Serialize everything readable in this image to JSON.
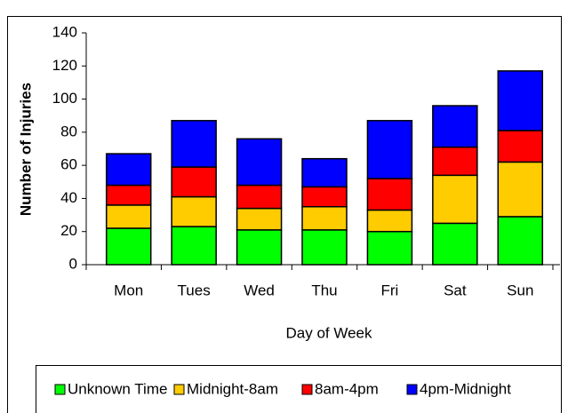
{
  "chart_data": {
    "type": "stacked_bar",
    "y_label": "Number of Injuries",
    "x_label": "Day of Week",
    "categories": [
      "Mon",
      "Tues",
      "Wed",
      "Thu",
      "Fri",
      "Sat",
      "Sun"
    ],
    "series": [
      {
        "name": "Unknown Time",
        "color": "#00ff00",
        "values": [
          22,
          23,
          21,
          21,
          20,
          25,
          29
        ]
      },
      {
        "name": "Midnight-8am",
        "color": "#ffcc00",
        "values": [
          14,
          18,
          13,
          14,
          13,
          29,
          33
        ]
      },
      {
        "name": "8am-4pm",
        "color": "#ff0000",
        "values": [
          12,
          18,
          14,
          12,
          19,
          17,
          19
        ]
      },
      {
        "name": "4pm-Midnight",
        "color": "#0000ff",
        "values": [
          19,
          28,
          28,
          17,
          35,
          25,
          36
        ]
      }
    ],
    "ylim": [
      0,
      140
    ],
    "yticks": [
      0,
      20,
      40,
      60,
      80,
      100,
      120,
      140
    ]
  }
}
